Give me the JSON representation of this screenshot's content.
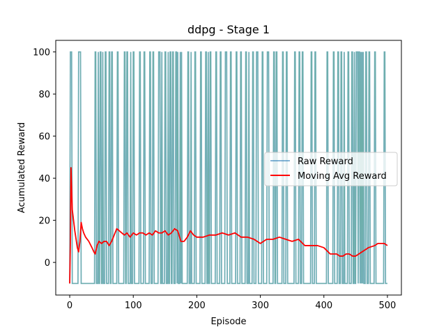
{
  "chart_data": {
    "type": "line",
    "title": "ddpg - Stage 1",
    "xlabel": "Episode",
    "ylabel": "Acumulated Reward",
    "xlim": [
      -22,
      522
    ],
    "ylim": [
      -15.5,
      105.5
    ],
    "xticks": [
      0,
      100,
      200,
      300,
      400,
      500
    ],
    "yticks": [
      0,
      20,
      40,
      60,
      80,
      100
    ],
    "grid": false,
    "legend_position": "center-right",
    "series": [
      {
        "name": "Raw Reward",
        "color": "#1f77b4",
        "style": "step-binary",
        "low": -10,
        "high": 100,
        "success_episodes": [
          1,
          2,
          3,
          14,
          15,
          16,
          17,
          40,
          41,
          45,
          48,
          49,
          52,
          56,
          57,
          62,
          63,
          66,
          67,
          75,
          76,
          86,
          87,
          90,
          91,
          96,
          100,
          101,
          110,
          111,
          117,
          118,
          126,
          127,
          131,
          132,
          140,
          141,
          142,
          145,
          150,
          151,
          155,
          158,
          159,
          162,
          163,
          167,
          168,
          170,
          174,
          176,
          186,
          187,
          191,
          197,
          198,
          206,
          207,
          214,
          215,
          218,
          221,
          222,
          230,
          231,
          237,
          238,
          245,
          246,
          247,
          253,
          254,
          262,
          263,
          269,
          270,
          277,
          278,
          282,
          288,
          289,
          294,
          295,
          296,
          303,
          304,
          311,
          312,
          313,
          321,
          322,
          325,
          326,
          335,
          336,
          341,
          342,
          354,
          355,
          361,
          362,
          366,
          367,
          380,
          381,
          386,
          387,
          405,
          406,
          415,
          416,
          422,
          423,
          427,
          428,
          432,
          438,
          439,
          444,
          445,
          448,
          451,
          452,
          453,
          455,
          456,
          458,
          460,
          462,
          466,
          467,
          471,
          472,
          480,
          481,
          495,
          496
        ]
      },
      {
        "name": "Moving Avg Reward",
        "color": "#ff0000",
        "x": [
          0,
          1,
          2,
          3,
          4,
          6,
          8,
          10,
          12,
          14,
          16,
          18,
          20,
          22,
          25,
          30,
          35,
          38,
          40,
          43,
          46,
          50,
          54,
          58,
          62,
          66,
          70,
          74,
          78,
          82,
          86,
          90,
          95,
          100,
          105,
          110,
          115,
          120,
          125,
          130,
          135,
          140,
          145,
          150,
          155,
          160,
          165,
          170,
          175,
          180,
          185,
          190,
          195,
          200,
          210,
          220,
          230,
          240,
          250,
          260,
          270,
          280,
          290,
          300,
          310,
          320,
          330,
          340,
          350,
          360,
          370,
          380,
          390,
          400,
          410,
          420,
          425,
          430,
          435,
          440,
          445,
          450,
          455,
          460,
          470,
          480,
          485,
          490,
          495,
          500
        ],
        "values": [
          -10,
          10,
          45,
          35,
          25,
          20,
          15,
          11,
          7,
          5,
          10,
          19,
          16,
          14,
          12,
          10,
          7,
          5,
          4,
          8,
          10,
          9,
          10,
          10,
          8,
          10,
          13,
          16,
          15,
          14,
          13,
          14,
          12,
          14,
          13,
          14,
          14,
          13,
          14,
          13,
          15,
          14,
          14,
          15,
          13,
          14,
          16,
          15,
          10,
          10,
          12,
          15,
          13,
          12,
          12,
          13,
          13,
          14,
          13,
          14,
          12,
          12,
          11,
          9,
          11,
          11,
          12,
          11,
          10,
          11,
          8,
          8,
          8,
          7,
          4,
          4,
          3,
          3,
          4,
          4,
          3,
          3,
          4,
          5,
          7,
          8,
          9,
          9,
          9,
          8
        ]
      }
    ]
  }
}
